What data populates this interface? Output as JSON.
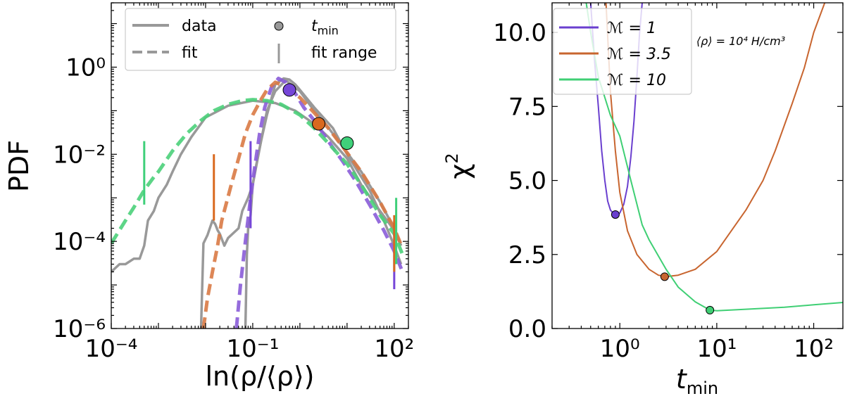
{
  "chart_data": [
    {
      "type": "line",
      "xscale": "log",
      "yscale": "log",
      "xlim": [
        0.0001,
        200
      ],
      "ylim": [
        1e-06,
        30
      ],
      "xlabel": "ln(ρ/⟨ρ⟩)",
      "ylabel": "PDF",
      "xticks": [
        {
          "value": 0.0001,
          "label": "10⁻⁴"
        },
        {
          "value": 0.1,
          "label": "10⁻¹"
        },
        {
          "value": 100,
          "label": "10²"
        }
      ],
      "yticks": [
        {
          "value": 1e-06,
          "label": "10⁻⁶"
        },
        {
          "value": 0.0001,
          "label": "10⁻⁴"
        },
        {
          "value": 0.01,
          "label": "10⁻²"
        },
        {
          "value": 1,
          "label": "10⁰"
        }
      ],
      "legend": {
        "position": "top",
        "entries": [
          {
            "label": "data",
            "style": "solid",
            "color": "#999999"
          },
          {
            "label": "fit",
            "style": "dashed",
            "color": "#999999"
          },
          {
            "label": "t",
            "sub": "min",
            "style": "marker",
            "color": "#999999"
          },
          {
            "label": "fit range",
            "style": "vline",
            "color": "#999999"
          }
        ]
      },
      "series": [
        {
          "name": "data M=1",
          "kind": "data",
          "color": "#999999",
          "x": [
            0.07,
            0.075,
            0.08,
            0.09,
            0.1,
            0.12,
            0.15,
            0.2,
            0.3,
            0.45,
            0.6,
            0.8,
            1.0,
            2.0,
            5,
            10,
            30,
            60,
            100,
            140
          ],
          "y": [
            1e-06,
            5e-05,
            0.0002,
            0.0004,
            0.002,
            0.006,
            0.02,
            0.08,
            0.4,
            0.55,
            0.52,
            0.4,
            0.3,
            0.12,
            0.04,
            0.01,
            0.0015,
            0.0003,
            8e-05,
            3e-05
          ]
        },
        {
          "name": "data M=3.5",
          "kind": "data",
          "color": "#999999",
          "x": [
            0.008,
            0.009,
            0.011,
            0.014,
            0.016,
            0.018,
            0.02,
            0.025,
            0.03,
            0.04,
            0.05,
            0.06,
            0.08,
            0.1,
            0.15,
            0.2,
            0.3,
            0.5,
            1.0,
            2.0,
            3.5,
            8,
            20,
            50,
            100,
            140
          ],
          "y": [
            1e-06,
            9e-05,
            0.00014,
            0.0003,
            0.00025,
            0.00018,
            0.00015,
            8e-05,
            0.00012,
            0.00016,
            0.0002,
            0.0005,
            0.001,
            0.002,
            0.02,
            0.1,
            0.28,
            0.5,
            0.28,
            0.1,
            0.05,
            0.015,
            0.004,
            0.0008,
            0.0002,
            8e-05
          ]
        },
        {
          "name": "data M=10",
          "kind": "data",
          "color": "#999999",
          "x": [
            0.0001,
            0.00015,
            0.0002,
            0.0003,
            0.0004,
            0.0005,
            0.0006,
            0.0008,
            0.001,
            0.0015,
            0.002,
            0.003,
            0.005,
            0.01,
            0.03,
            0.1,
            0.3,
            0.8,
            2.0,
            4,
            10,
            20,
            50,
            100,
            140
          ],
          "y": [
            2e-05,
            3e-05,
            3e-05,
            4e-05,
            4e-05,
            8e-05,
            0.0003,
            0.0005,
            0.001,
            0.002,
            0.004,
            0.01,
            0.025,
            0.07,
            0.13,
            0.17,
            0.15,
            0.1,
            0.05,
            0.025,
            0.008,
            0.002,
            0.0005,
            0.00018,
            8e-05
          ]
        },
        {
          "name": "fit M=1",
          "kind": "fit",
          "color": "#8a5cd8",
          "x": [
            0.045,
            0.055,
            0.07,
            0.09,
            0.11,
            0.14,
            0.18,
            0.25,
            0.35,
            0.5,
            0.8,
            1.2,
            2,
            4,
            8,
            15,
            30,
            60,
            100,
            150
          ],
          "y": [
            1e-06,
            1e-05,
            0.0001,
            0.001,
            0.005,
            0.03,
            0.12,
            0.35,
            0.55,
            0.45,
            0.25,
            0.12,
            0.06,
            0.02,
            0.007,
            0.0025,
            0.0007,
            0.00018,
            6e-05,
            2e-05
          ]
        },
        {
          "name": "fit M=3.5",
          "kind": "fit",
          "color": "#d97a45",
          "x": [
            0.009,
            0.011,
            0.014,
            0.018,
            0.022,
            0.028,
            0.035,
            0.05,
            0.07,
            0.1,
            0.15,
            0.2,
            0.3,
            0.5,
            1.0,
            2.0,
            4,
            8,
            20,
            50,
            100,
            150
          ],
          "y": [
            1e-06,
            5e-06,
            2e-05,
            8e-05,
            0.0003,
            0.0008,
            0.002,
            0.008,
            0.03,
            0.08,
            0.18,
            0.3,
            0.45,
            0.35,
            0.2,
            0.09,
            0.04,
            0.015,
            0.004,
            0.0008,
            0.0002,
            7e-05
          ]
        },
        {
          "name": "fit M=10",
          "kind": "fit",
          "color": "#4bd07a",
          "x": [
            0.0001,
            0.0002,
            0.0003,
            0.0005,
            0.0008,
            0.001,
            0.002,
            0.004,
            0.008,
            0.015,
            0.03,
            0.06,
            0.1,
            0.2,
            0.4,
            1.0,
            2.0,
            4,
            10,
            20,
            50,
            100,
            150
          ],
          "y": [
            9e-05,
            0.0003,
            0.0006,
            0.0015,
            0.003,
            0.004,
            0.012,
            0.03,
            0.06,
            0.1,
            0.14,
            0.17,
            0.18,
            0.17,
            0.14,
            0.08,
            0.04,
            0.018,
            0.006,
            0.002,
            0.0004,
            0.00015,
            5e-05
          ]
        }
      ],
      "tmin_markers": [
        {
          "x": 0.6,
          "y": 0.3,
          "color": "#7646d8"
        },
        {
          "x": 2.5,
          "y": 0.05,
          "color": "#d9691f"
        },
        {
          "x": 10,
          "y": 0.018,
          "color": "#3fd07a"
        }
      ],
      "fit_ranges": [
        {
          "x": 0.09,
          "y0": 0.0002,
          "y1": 0.02,
          "color": "#7646d8"
        },
        {
          "x": 100,
          "y0": 8e-06,
          "y1": 0.0003,
          "color": "#7646d8"
        },
        {
          "x": 0.015,
          "y0": 0.0003,
          "y1": 0.01,
          "color": "#d9691f"
        },
        {
          "x": 100,
          "y0": 2e-05,
          "y1": 0.0004,
          "color": "#d9691f"
        },
        {
          "x": 0.0005,
          "y0": 0.0007,
          "y1": 0.02,
          "color": "#3fd07a"
        },
        {
          "x": 110,
          "y0": 3e-05,
          "y1": 0.001,
          "color": "#3fd07a"
        }
      ]
    },
    {
      "type": "line",
      "xscale": "log",
      "yscale": "linear",
      "xlim": [
        0.2,
        200
      ],
      "ylim": [
        0,
        11
      ],
      "xlabel": "t",
      "xlabel_sub": "min",
      "ylabel": "χ",
      "ylabel_sup": "2",
      "annotation": "⟨ρ⟩ = 10⁴ H/cm³",
      "xticks": [
        {
          "value": 1,
          "label": "10⁰"
        },
        {
          "value": 10,
          "label": "10¹"
        },
        {
          "value": 100,
          "label": "10²"
        }
      ],
      "yticks": [
        {
          "value": 0,
          "label": "0.0"
        },
        {
          "value": 2.5,
          "label": "2.5"
        },
        {
          "value": 5,
          "label": "5.0"
        },
        {
          "value": 7.5,
          "label": "7.5"
        },
        {
          "value": 10,
          "label": "10.0"
        }
      ],
      "legend": {
        "position": "top-left",
        "entries": [
          {
            "label": "ℳ = 1",
            "color": "#6a3fcf"
          },
          {
            "label": "ℳ = 3.5",
            "color": "#c8652f"
          },
          {
            "label": "ℳ = 10",
            "color": "#3fcf74"
          }
        ]
      },
      "series": [
        {
          "name": "ℳ = 1",
          "color": "#6a3fcf",
          "x": [
            0.5,
            0.55,
            0.6,
            0.65,
            0.7,
            0.75,
            0.8,
            0.85,
            0.9,
            1.0,
            1.1,
            1.2,
            1.3,
            1.4,
            1.5,
            1.6,
            1.7
          ],
          "y": [
            11,
            9.0,
            7.5,
            6.0,
            5.0,
            4.3,
            4.0,
            3.9,
            3.85,
            3.9,
            4.2,
            4.8,
            5.8,
            7.0,
            8.5,
            10.0,
            11
          ]
        },
        {
          "name": "ℳ = 3.5",
          "color": "#c8652f",
          "x": [
            0.72,
            0.8,
            0.9,
            1.0,
            1.2,
            1.5,
            2.0,
            2.5,
            3.0,
            4.0,
            6,
            10,
            20,
            30,
            40,
            60,
            80,
            100,
            130
          ],
          "y": [
            11,
            8.0,
            6.0,
            4.6,
            3.3,
            2.5,
            2.0,
            1.8,
            1.75,
            1.8,
            2.0,
            2.6,
            4.0,
            5.0,
            6.0,
            7.6,
            8.8,
            10.0,
            11
          ]
        },
        {
          "name": "ℳ = 10",
          "color": "#3fcf74",
          "x": [
            0.45,
            0.5,
            0.6,
            0.8,
            1.0,
            1.3,
            1.7,
            2.0,
            3.0,
            4.0,
            6,
            8.5,
            10,
            20,
            50,
            100,
            200
          ],
          "y": [
            11,
            10.0,
            8.5,
            7.2,
            6.5,
            5.0,
            3.5,
            3.0,
            2.0,
            1.4,
            0.9,
            0.62,
            0.6,
            0.65,
            0.72,
            0.8,
            0.88
          ]
        }
      ],
      "tmin_markers": [
        {
          "x": 0.9,
          "y": 3.85,
          "color": "#6a3fcf"
        },
        {
          "x": 2.9,
          "y": 1.75,
          "color": "#c8652f"
        },
        {
          "x": 8.5,
          "y": 0.62,
          "color": "#3fcf74"
        }
      ]
    }
  ]
}
